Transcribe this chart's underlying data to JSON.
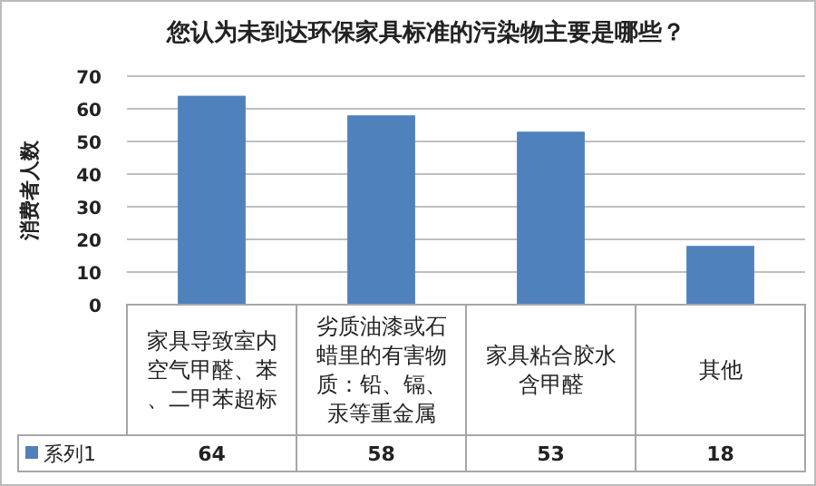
{
  "chart_data": {
    "type": "bar",
    "title": "您认为未到达环保家具标准的污染物主要是哪些？",
    "ylabel": "消费者人数",
    "categories": [
      "家具导致室内空气甲醛、苯、二甲苯超标",
      "劣质油漆或石蜡里的有害物质：铅、镉、汞等重金属",
      "家具粘合胶水含甲醛",
      "其他"
    ],
    "series": [
      {
        "name": "系列1",
        "color": "#4f81bd",
        "values": [
          64,
          58,
          53,
          18
        ]
      }
    ],
    "ylim": [
      0,
      70
    ],
    "yticks": [
      0,
      10,
      20,
      30,
      40,
      50,
      60,
      70
    ],
    "grid": "y",
    "legend": "bottom",
    "data_labels": true
  }
}
